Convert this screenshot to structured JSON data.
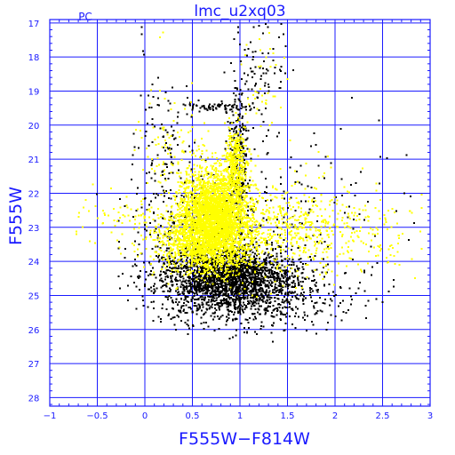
{
  "chart_data": {
    "type": "scatter",
    "title": "lmc_u2xq03",
    "corner_label": "PC",
    "xlabel": "F555W−F814W",
    "ylabel": "F555W",
    "xlim": [
      -1,
      3
    ],
    "ylim": [
      28.25,
      16.9
    ],
    "y_inverted": true,
    "grid": true,
    "x_ticks": [
      -1,
      -0.5,
      0,
      0.5,
      1,
      1.5,
      2,
      2.5,
      3
    ],
    "x_tick_labels": [
      "−1",
      "−0.5",
      "0",
      "0.5",
      "1",
      "1.5",
      "2",
      "2.5",
      "3"
    ],
    "y_ticks": [
      17,
      18,
      19,
      20,
      21,
      22,
      23,
      24,
      25,
      26,
      27,
      28
    ],
    "y_tick_labels": [
      "17",
      "18",
      "19",
      "20",
      "21",
      "22",
      "23",
      "24",
      "25",
      "26",
      "27",
      "28"
    ],
    "colors": {
      "axes": "#1a1aff",
      "grid": "#1a1aff",
      "series_black": "#000000",
      "series_yellow": "#ffff00"
    },
    "series": [
      {
        "color": "#000000",
        "regions": [
          {
            "cx": 0.85,
            "cy": 24.35,
            "sx": 0.32,
            "sy": 0.45,
            "n": 1700
          },
          {
            "cx": 0.95,
            "cy": 24.9,
            "sx": 0.42,
            "sy": 0.5,
            "n": 700
          },
          {
            "cx": 1.35,
            "cy": 25.0,
            "sx": 0.45,
            "sy": 0.45,
            "n": 260
          },
          {
            "cx": 0.55,
            "cy": 23.2,
            "sx": 0.35,
            "sy": 0.9,
            "n": 300
          },
          {
            "cx": 0.98,
            "cy": 21.0,
            "sx": 0.05,
            "sy": 1.1,
            "n": 260
          },
          {
            "cx": 0.75,
            "cy": 19.45,
            "sx": 0.18,
            "sy": 0.08,
            "n": 70
          },
          {
            "cx": 0.2,
            "cy": 20.7,
            "sx": 0.15,
            "sy": 0.9,
            "n": 110
          },
          {
            "cx": 1.2,
            "cy": 18.4,
            "sx": 0.15,
            "sy": 0.9,
            "n": 90
          },
          {
            "cx": 1.7,
            "cy": 22.6,
            "sx": 0.6,
            "sy": 1.2,
            "n": 140
          }
        ],
        "points": [
          [
            0.97,
            17.1
          ],
          [
            0.97,
            17.25
          ],
          [
            0.99,
            17.6
          ],
          [
            1.0,
            18.1
          ],
          [
            0.95,
            19.1
          ],
          [
            0.03,
            19.1
          ],
          [
            -0.05,
            19.1
          ],
          [
            0.08,
            19.15
          ],
          [
            -0.12,
            24.6
          ],
          [
            -0.1,
            24.72
          ],
          [
            0.1,
            24.85
          ],
          [
            1.8,
            25.5
          ],
          [
            1.95,
            25.55
          ],
          [
            2.13,
            25.4
          ],
          [
            2.3,
            24.3
          ],
          [
            2.25,
            24.6
          ],
          [
            1.45,
            17.3
          ],
          [
            1.4,
            17.4
          ],
          [
            0.92,
            19.9
          ],
          [
            0.93,
            20.1
          ],
          [
            -0.04,
            17.1
          ],
          [
            -0.04,
            17.3
          ],
          [
            -0.03,
            17.8
          ],
          [
            -0.02,
            17.9
          ]
        ]
      },
      {
        "color": "#ffff00",
        "regions": [
          {
            "cx": 0.72,
            "cy": 22.6,
            "sx": 0.18,
            "sy": 0.7,
            "n": 2600
          },
          {
            "cx": 0.62,
            "cy": 23.4,
            "sx": 0.25,
            "sy": 0.45,
            "n": 900
          },
          {
            "cx": 0.95,
            "cy": 21.2,
            "sx": 0.06,
            "sy": 0.6,
            "n": 380
          },
          {
            "cx": 1.1,
            "cy": 23.0,
            "sx": 0.55,
            "sy": 0.7,
            "n": 700
          },
          {
            "cx": 1.9,
            "cy": 23.2,
            "sx": 0.55,
            "sy": 0.6,
            "n": 260
          },
          {
            "cx": -0.2,
            "cy": 22.7,
            "sx": 0.3,
            "sy": 0.35,
            "n": 60
          },
          {
            "cx": 0.22,
            "cy": 20.6,
            "sx": 0.2,
            "sy": 0.7,
            "n": 80
          },
          {
            "cx": 1.25,
            "cy": 18.5,
            "sx": 0.12,
            "sy": 0.9,
            "n": 40
          }
        ],
        "points": [
          [
            -0.6,
            22.5
          ],
          [
            -0.7,
            22.55
          ],
          [
            -0.45,
            22.85
          ],
          [
            -0.3,
            22.8
          ],
          [
            2.65,
            23.7
          ],
          [
            2.78,
            22.5
          ],
          [
            2.9,
            22.4
          ],
          [
            2.55,
            24.0
          ],
          [
            0.15,
            17.4
          ],
          [
            0.18,
            17.25
          ]
        ]
      }
    ]
  }
}
